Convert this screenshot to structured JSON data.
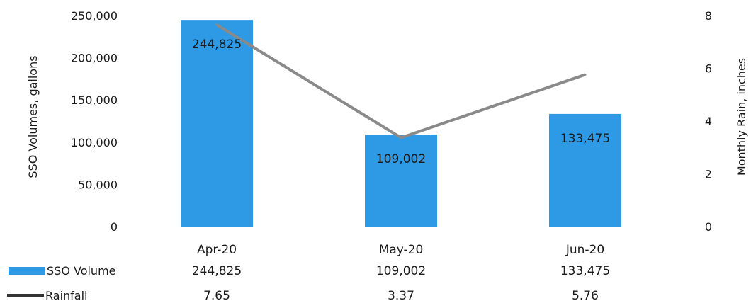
{
  "chart_data": {
    "type": "bar",
    "categories": [
      "Apr-20",
      "May-20",
      "Jun-20"
    ],
    "series": [
      {
        "name": "SSO Volume",
        "kind": "bar",
        "axis": "left",
        "values": [
          244825,
          109002,
          133475
        ],
        "labels": [
          "244,825",
          "109,002",
          "133,475"
        ]
      },
      {
        "name": "Rainfall",
        "kind": "line",
        "axis": "right",
        "values": [
          7.65,
          3.37,
          5.76
        ],
        "labels": [
          "7.65",
          "3.37",
          "5.76"
        ]
      }
    ],
    "ylabel": "SSO Volumes, gallons",
    "y2label": "Monthly Rain, inches",
    "ylim": [
      0,
      250000
    ],
    "y2lim": [
      0,
      8
    ],
    "yticks": [
      "0",
      "50,000",
      "100,000",
      "150,000",
      "200,000",
      "250,000"
    ],
    "y2ticks": [
      "0",
      "2",
      "4",
      "6",
      "8"
    ],
    "colors": {
      "bar": "#2e9ae6",
      "line": "#8a8a8a",
      "legend_line": "#333333"
    },
    "legend": "data-table-bottom",
    "grid": false
  }
}
